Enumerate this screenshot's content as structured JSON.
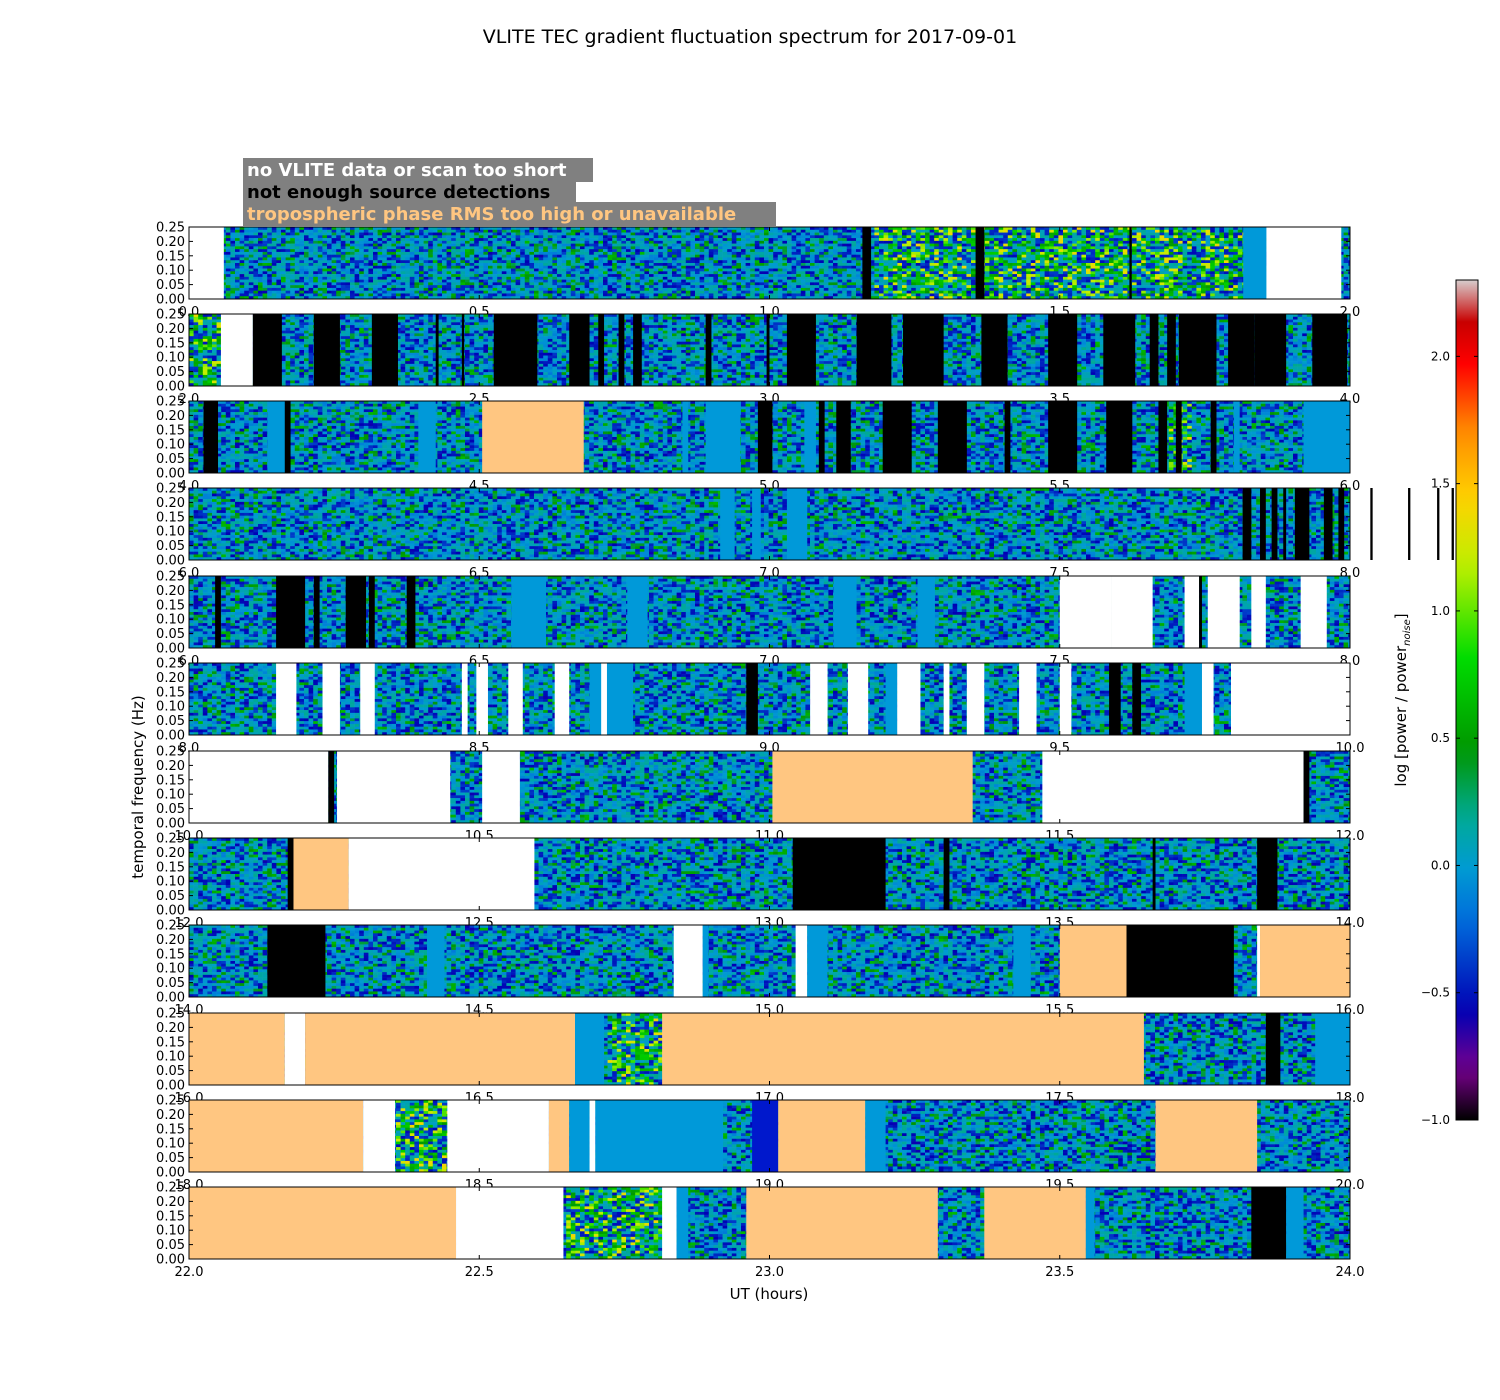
{
  "chart_data": {
    "type": "heatmap",
    "title": "VLITE TEC gradient fluctuation spectrum for 2017-09-01",
    "xlabel": "UT (hours)",
    "ylabel": "temporal frequency (Hz)",
    "colorbar": {
      "label_main": "log [power / power",
      "label_sub": "noise",
      "label_close": "]",
      "range": [
        -1.0,
        2.3
      ],
      "ticks": [
        "−1.0",
        "−0.5",
        "0.0",
        "0.5",
        "1.0",
        "1.5",
        "2.0"
      ],
      "tick_values": [
        -1.0,
        -0.5,
        0.0,
        0.5,
        1.0,
        1.5,
        2.0
      ],
      "colormap": "spectral"
    },
    "legend": {
      "placement": "top-left",
      "items": [
        {
          "label": "no VLITE data or scan too short",
          "color": "#ffffff",
          "flag": "nodata"
        },
        {
          "label": "not enough source detections",
          "color": "#000000",
          "flag": "nodet"
        },
        {
          "label": "tropospheric phase RMS too high or unavailable",
          "color": "#ffc681",
          "flag": "tropo"
        }
      ]
    },
    "y_ticks": [
      "0.00",
      "0.05",
      "0.10",
      "0.15",
      "0.20",
      "0.25"
    ],
    "y_tick_values": [
      0.0,
      0.05,
      0.1,
      0.15,
      0.2,
      0.25
    ],
    "ylim": [
      0.0,
      0.25
    ],
    "flag_colors": {
      "nodata": "#ffffff",
      "nodet": "#000000",
      "tropo": "#ffc681",
      "blue": "#0099d9",
      "darkblue": "#0018cc"
    },
    "panels": [
      {
        "xlim": [
          0.0,
          2.0
        ],
        "xticks": [
          "0.0",
          "0.5",
          "1.0",
          "1.5",
          "2.0"
        ],
        "flags": [
          [
            0.0,
            0.06,
            "nodata"
          ],
          [
            1.16,
            1.175,
            "nodet"
          ],
          [
            1.355,
            1.37,
            "nodet"
          ],
          [
            1.62,
            1.62,
            "nodet"
          ],
          [
            1.816,
            1.856,
            "blue"
          ],
          [
            1.856,
            1.985,
            "nodata"
          ]
        ],
        "active": [
          [
            1.175,
            1.83
          ]
        ]
      },
      {
        "xlim": [
          2.0,
          4.0
        ],
        "xticks": [
          "2.0",
          "2.5",
          "3.0",
          "3.5",
          "4.0"
        ],
        "flags": [
          [
            2.055,
            2.11,
            "nodata"
          ],
          [
            2.11,
            2.16,
            "nodet"
          ],
          [
            2.215,
            2.26,
            "nodet"
          ],
          [
            2.315,
            2.36,
            "nodet"
          ],
          [
            2.425,
            2.43,
            "nodet"
          ],
          [
            2.47,
            2.47,
            "nodet"
          ],
          [
            2.525,
            2.6,
            "nodet"
          ],
          [
            2.655,
            2.69,
            "nodet"
          ],
          [
            2.705,
            2.715,
            "nodet"
          ],
          [
            2.74,
            2.75,
            "nodet"
          ],
          [
            2.765,
            2.78,
            "nodet"
          ],
          [
            2.89,
            2.9,
            "nodet"
          ],
          [
            2.995,
            3.0,
            "nodet"
          ],
          [
            3.03,
            3.08,
            "nodet"
          ],
          [
            3.15,
            3.21,
            "nodet"
          ],
          [
            3.23,
            3.3,
            "nodet"
          ],
          [
            3.365,
            3.41,
            "nodet"
          ],
          [
            3.48,
            3.53,
            "nodet"
          ],
          [
            3.575,
            3.63,
            "nodet"
          ],
          [
            3.655,
            3.67,
            "nodet"
          ],
          [
            3.685,
            3.7,
            "nodet"
          ],
          [
            3.705,
            3.77,
            "nodet"
          ],
          [
            3.79,
            3.835,
            "nodet"
          ],
          [
            3.835,
            3.89,
            "nodet"
          ],
          [
            3.935,
            3.995,
            "nodet"
          ]
        ],
        "active": [
          [
            2.0,
            2.055
          ]
        ]
      },
      {
        "xlim": [
          4.0,
          6.0
        ],
        "xticks": [
          "4.0",
          "4.5",
          "5.0",
          "5.5",
          "6.0"
        ],
        "flags": [
          [
            4.025,
            4.05,
            "nodet"
          ],
          [
            4.135,
            4.17,
            "blue"
          ],
          [
            4.165,
            4.175,
            "nodet"
          ],
          [
            4.395,
            4.425,
            "blue"
          ],
          [
            4.505,
            4.68,
            "tropo"
          ],
          [
            4.85,
            4.86,
            "blue"
          ],
          [
            4.89,
            4.95,
            "blue"
          ],
          [
            4.98,
            5.005,
            "nodet"
          ],
          [
            5.06,
            5.08,
            "blue"
          ],
          [
            5.085,
            5.095,
            "nodet"
          ],
          [
            5.115,
            5.14,
            "nodet"
          ],
          [
            5.195,
            5.245,
            "nodet"
          ],
          [
            5.29,
            5.34,
            "nodet"
          ],
          [
            5.405,
            5.415,
            "nodet"
          ],
          [
            5.48,
            5.53,
            "nodet"
          ],
          [
            5.58,
            5.625,
            "nodet"
          ],
          [
            5.67,
            5.685,
            "nodet"
          ],
          [
            5.7,
            5.71,
            "nodet"
          ],
          [
            5.76,
            5.77,
            "nodet"
          ],
          [
            5.8,
            5.81,
            "blue"
          ],
          [
            5.92,
            6.0,
            "blue"
          ]
        ],
        "active": [
          [
            5.68,
            5.72
          ]
        ]
      },
      {
        "xlim": [
          6.0,
          8.0
        ],
        "xticks": [
          "6.0",
          "6.5",
          "7.0",
          "7.5",
          "8.0"
        ],
        "flags": [
          [
            6.915,
            6.94,
            "blue"
          ],
          [
            6.97,
            6.985,
            "blue"
          ],
          [
            7.03,
            7.065,
            "blue"
          ],
          [
            7.815,
            7.83,
            "nodet"
          ],
          [
            7.845,
            7.855,
            "nodet"
          ],
          [
            7.865,
            7.875,
            "nodet"
          ],
          [
            7.885,
            7.89,
            "nodet"
          ],
          [
            7.905,
            7.93,
            "nodet"
          ],
          [
            7.955,
            7.97,
            "nodet"
          ],
          [
            7.98,
            7.99,
            "nodet"
          ],
          [
            8.035,
            8.075,
            "nodet"
          ],
          [
            8.1,
            8.13,
            "nodet"
          ],
          [
            8.15,
            8.16,
            "nodet"
          ],
          [
            8.175,
            8.2,
            "nodet"
          ]
        ],
        "active": []
      },
      {
        "xlim": [
          6.0,
          8.0
        ],
        "xticks": [
          "6.0",
          "6.5",
          "7.0",
          "7.5",
          "8.0"
        ],
        "flags": [
          [
            6.045,
            6.055,
            "nodet"
          ],
          [
            6.15,
            6.2,
            "nodet"
          ],
          [
            6.215,
            6.225,
            "nodet"
          ],
          [
            6.27,
            6.305,
            "nodet"
          ],
          [
            6.31,
            6.32,
            "nodet"
          ],
          [
            6.375,
            6.39,
            "nodet"
          ],
          [
            6.555,
            6.615,
            "blue"
          ],
          [
            6.755,
            6.79,
            "blue"
          ],
          [
            7.11,
            7.15,
            "blue"
          ],
          [
            7.255,
            7.285,
            "blue"
          ],
          [
            7.5,
            7.59,
            "nodata"
          ],
          [
            7.59,
            7.595,
            "nodet"
          ],
          [
            7.59,
            7.66,
            "nodata"
          ],
          [
            7.715,
            7.74,
            "nodata"
          ],
          [
            7.74,
            7.745,
            "nodet"
          ],
          [
            7.755,
            7.81,
            "nodata"
          ],
          [
            7.83,
            7.855,
            "nodata"
          ],
          [
            7.915,
            7.96,
            "nodata"
          ]
        ],
        "active": []
      },
      {
        "xlim": [
          8.0,
          10.0
        ],
        "xticks": [
          "8.0",
          "8.5",
          "9.0",
          "9.5",
          "10.0"
        ],
        "flags": [
          [
            8.15,
            8.185,
            "nodata"
          ],
          [
            8.23,
            8.26,
            "nodata"
          ],
          [
            8.295,
            8.32,
            "nodata"
          ],
          [
            8.47,
            8.48,
            "nodata"
          ],
          [
            8.495,
            8.515,
            "nodata"
          ],
          [
            8.55,
            8.575,
            "nodata"
          ],
          [
            8.63,
            8.655,
            "nodata"
          ],
          [
            8.69,
            8.765,
            "blue"
          ],
          [
            8.71,
            8.72,
            "nodata"
          ],
          [
            8.96,
            8.98,
            "nodet"
          ],
          [
            9.07,
            9.1,
            "nodata"
          ],
          [
            9.135,
            9.17,
            "nodata"
          ],
          [
            9.2,
            9.22,
            "blue"
          ],
          [
            9.22,
            9.26,
            "nodata"
          ],
          [
            9.3,
            9.31,
            "nodata"
          ],
          [
            9.34,
            9.37,
            "nodata"
          ],
          [
            9.43,
            9.46,
            "nodata"
          ],
          [
            9.5,
            9.52,
            "nodata"
          ],
          [
            9.585,
            9.605,
            "nodet"
          ],
          [
            9.625,
            9.64,
            "nodet"
          ],
          [
            9.715,
            9.745,
            "blue"
          ],
          [
            9.745,
            9.765,
            "nodata"
          ],
          [
            9.795,
            10.0,
            "nodata"
          ]
        ],
        "active": []
      },
      {
        "xlim": [
          10.0,
          12.0
        ],
        "xticks": [
          "10.0",
          "10.5",
          "11.0",
          "11.5",
          "12.0"
        ],
        "flags": [
          [
            10.0,
            10.24,
            "nodata"
          ],
          [
            10.24,
            10.25,
            "nodet"
          ],
          [
            10.255,
            10.45,
            "nodata"
          ],
          [
            10.505,
            10.57,
            "nodata"
          ],
          [
            11.005,
            11.35,
            "tropo"
          ],
          [
            11.47,
            11.92,
            "nodata"
          ],
          [
            11.92,
            11.93,
            "nodet"
          ]
        ],
        "active": []
      },
      {
        "xlim": [
          12.0,
          14.0
        ],
        "xticks": [
          "12.0",
          "12.5",
          "13.0",
          "13.5",
          "14.0"
        ],
        "flags": [
          [
            12.17,
            12.18,
            "nodet"
          ],
          [
            12.18,
            12.275,
            "tropo"
          ],
          [
            12.275,
            12.595,
            "nodata"
          ],
          [
            13.04,
            13.2,
            "nodet"
          ],
          [
            13.3,
            13.31,
            "nodet"
          ],
          [
            13.66,
            13.665,
            "nodet"
          ],
          [
            13.84,
            13.875,
            "nodet"
          ]
        ],
        "active": []
      },
      {
        "xlim": [
          14.0,
          16.0
        ],
        "xticks": [
          "14.0",
          "14.5",
          "15.0",
          "15.5",
          "16.0"
        ],
        "flags": [
          [
            14.135,
            14.235,
            "nodet"
          ],
          [
            14.41,
            14.44,
            "blue"
          ],
          [
            14.835,
            14.885,
            "nodata"
          ],
          [
            14.885,
            14.895,
            "blue"
          ],
          [
            15.045,
            15.065,
            "nodata"
          ],
          [
            15.065,
            15.1,
            "blue"
          ],
          [
            15.42,
            15.45,
            "blue"
          ],
          [
            15.5,
            15.615,
            "tropo"
          ],
          [
            15.615,
            15.8,
            "nodet"
          ],
          [
            15.84,
            15.845,
            "nodata"
          ],
          [
            15.845,
            16.0,
            "tropo"
          ]
        ],
        "active": []
      },
      {
        "xlim": [
          16.0,
          18.0
        ],
        "xticks": [
          "16.0",
          "16.5",
          "17.0",
          "17.5",
          "18.0"
        ],
        "flags": [
          [
            16.0,
            16.165,
            "tropo"
          ],
          [
            16.165,
            16.2,
            "nodata"
          ],
          [
            16.2,
            16.665,
            "tropo"
          ],
          [
            16.665,
            16.715,
            "blue"
          ],
          [
            16.815,
            17.645,
            "tropo"
          ],
          [
            17.855,
            17.88,
            "nodet"
          ],
          [
            17.94,
            18.0,
            "blue"
          ]
        ],
        "active": [
          [
            16.715,
            16.815
          ]
        ]
      },
      {
        "xlim": [
          18.0,
          20.0
        ],
        "xticks": [
          "18.0",
          "18.5",
          "19.0",
          "19.5",
          "20.0"
        ],
        "flags": [
          [
            18.0,
            18.3,
            "tropo"
          ],
          [
            18.3,
            18.355,
            "nodata"
          ],
          [
            18.445,
            18.62,
            "nodata"
          ],
          [
            18.62,
            18.655,
            "tropo"
          ],
          [
            18.655,
            18.69,
            "blue"
          ],
          [
            18.69,
            18.7,
            "nodata"
          ],
          [
            18.7,
            18.92,
            "blue"
          ],
          [
            18.97,
            19.015,
            "darkblue"
          ],
          [
            19.015,
            19.165,
            "tropo"
          ],
          [
            19.165,
            19.2,
            "blue"
          ],
          [
            19.665,
            19.84,
            "tropo"
          ]
        ],
        "active": [
          [
            18.355,
            18.445
          ]
        ]
      },
      {
        "xlim": [
          22.0,
          24.0
        ],
        "xticks": [
          "22.0",
          "22.5",
          "23.0",
          "23.5",
          "24.0"
        ],
        "flags": [
          [
            22.0,
            22.46,
            "tropo"
          ],
          [
            22.46,
            22.645,
            "nodata"
          ],
          [
            22.815,
            22.84,
            "nodata"
          ],
          [
            22.84,
            22.86,
            "blue"
          ],
          [
            22.96,
            23.29,
            "tropo"
          ],
          [
            23.37,
            23.545,
            "tropo"
          ],
          [
            23.545,
            23.56,
            "blue"
          ],
          [
            23.83,
            23.89,
            "nodet"
          ],
          [
            23.89,
            23.92,
            "blue"
          ]
        ],
        "active": [
          [
            22.645,
            22.815
          ]
        ]
      }
    ]
  }
}
